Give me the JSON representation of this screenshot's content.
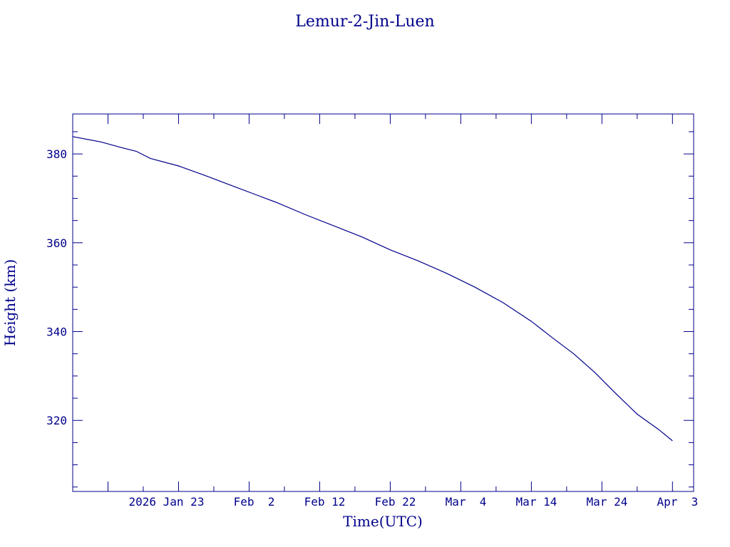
{
  "colors": {
    "axis": "#00008b",
    "line": "#00008b",
    "background": "#ffffff"
  },
  "chart_data": {
    "type": "line",
    "title": "Lemur-2-Jin-Luen",
    "xlabel": "Time(UTC)",
    "ylabel": "Height (km)",
    "xlim": [
      "2026-01-08",
      "2026-04-06"
    ],
    "ylim": [
      304,
      389
    ],
    "grid": false,
    "x_ticks": [
      {
        "date": "2026-01-23",
        "label": "2026 Jan 23"
      },
      {
        "date": "2026-02-02",
        "label": "Feb  2"
      },
      {
        "date": "2026-02-12",
        "label": "Feb 12"
      },
      {
        "date": "2026-02-22",
        "label": "Feb 22"
      },
      {
        "date": "2026-03-04",
        "label": "Mar  4"
      },
      {
        "date": "2026-03-14",
        "label": "Mar 14"
      },
      {
        "date": "2026-03-24",
        "label": "Mar 24"
      },
      {
        "date": "2026-04-03",
        "label": "Apr  3"
      }
    ],
    "y_ticks": [
      320,
      340,
      360,
      380
    ],
    "series": [
      {
        "points": [
          [
            "2026-01-08",
            383.9
          ],
          [
            "2026-01-12",
            382.7
          ],
          [
            "2026-01-15",
            381.4
          ],
          [
            "2026-01-17",
            380.6
          ],
          [
            "2026-01-19",
            379.0
          ],
          [
            "2026-01-23",
            377.3
          ],
          [
            "2026-01-27",
            375.0
          ],
          [
            "2026-01-31",
            372.6
          ],
          [
            "2026-02-03",
            370.8
          ],
          [
            "2026-02-06",
            369.0
          ],
          [
            "2026-02-10",
            366.3
          ],
          [
            "2026-02-14",
            363.8
          ],
          [
            "2026-02-18",
            361.3
          ],
          [
            "2026-02-22",
            358.4
          ],
          [
            "2026-02-26",
            355.9
          ],
          [
            "2026-03-02",
            353.1
          ],
          [
            "2026-03-06",
            350.0
          ],
          [
            "2026-03-10",
            346.5
          ],
          [
            "2026-03-14",
            342.3
          ],
          [
            "2026-03-17",
            338.6
          ],
          [
            "2026-03-20",
            335.0
          ],
          [
            "2026-03-23",
            330.8
          ],
          [
            "2026-03-26",
            326.0
          ],
          [
            "2026-03-29",
            321.4
          ],
          [
            "2026-04-01",
            318.0
          ],
          [
            "2026-04-03",
            315.4
          ]
        ]
      }
    ]
  }
}
